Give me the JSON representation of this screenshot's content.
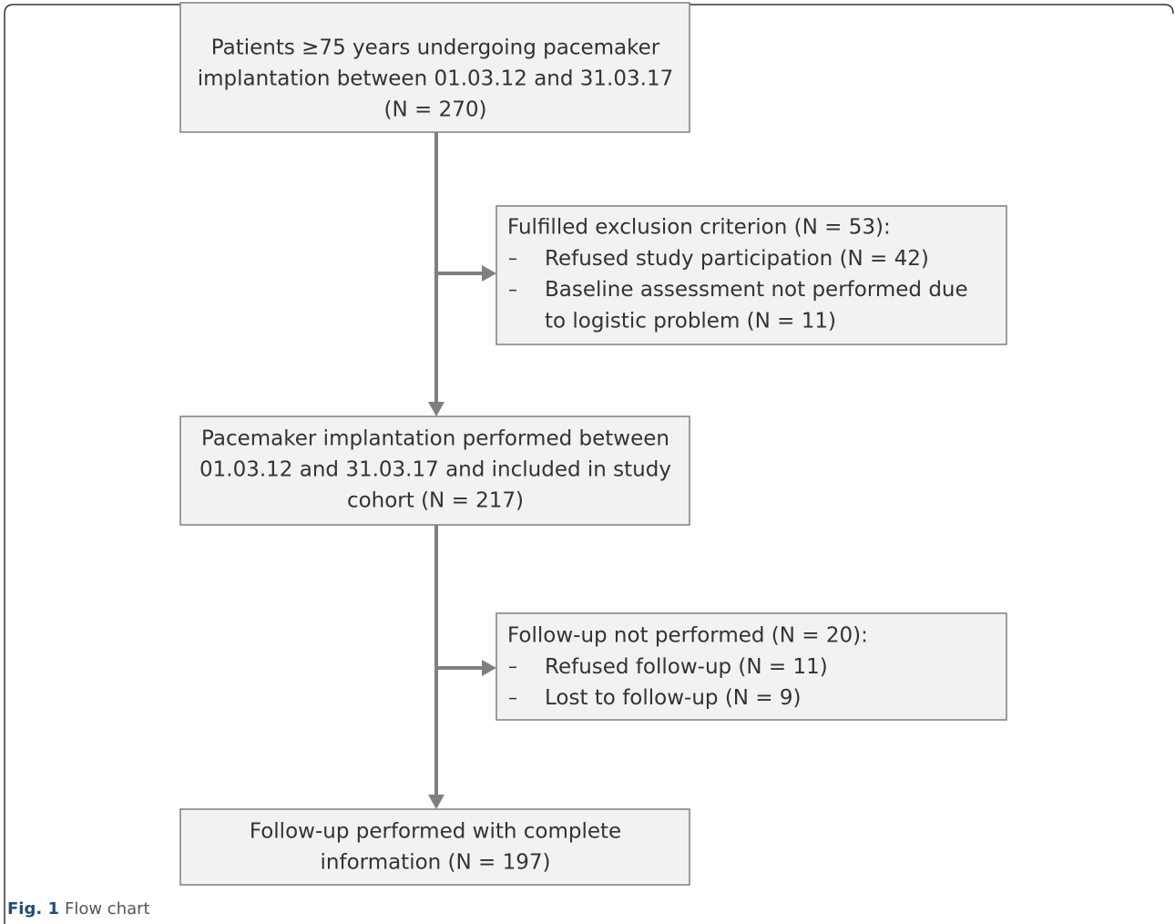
{
  "nodes": [
    {
      "lines": [
        "Patients ≥75 years undergoing pacemaker",
        "implantation between 01.03.12 and 31.03.17",
        "(N = 270)"
      ]
    },
    {
      "heading": "Fulfilled exclusion criterion (N = 53):",
      "items": [
        [
          "Refused study participation (N = 42)"
        ],
        [
          "Baseline assessment not performed due",
          "to logistic problem (N = 11)"
        ]
      ]
    },
    {
      "lines": [
        "Pacemaker implantation performed between",
        "01.03.12 and 31.03.17 and included in study",
        "cohort (N = 217)"
      ]
    },
    {
      "heading": "Follow-up not performed (N = 20):",
      "items": [
        [
          "Refused follow-up (N = 11)"
        ],
        [
          "Lost to follow-up (N = 9)"
        ]
      ]
    },
    {
      "lines": [
        "Follow-up performed with complete",
        "information (N = 197)"
      ]
    }
  ],
  "caption": {
    "label": "Fig. 1",
    "text": "Flow chart"
  }
}
